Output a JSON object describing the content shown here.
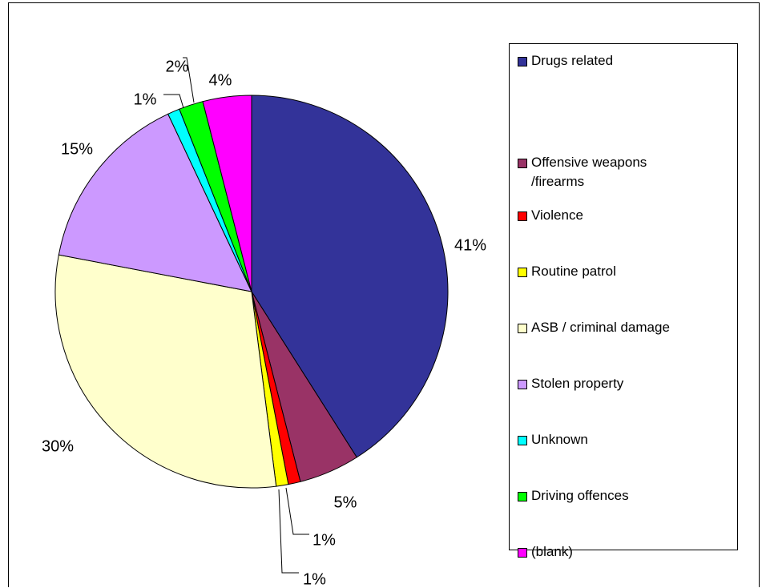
{
  "chart_data": {
    "type": "pie",
    "slices": [
      {
        "label": "Drugs related",
        "percent": 41,
        "value_label": "41%",
        "color": "#333399"
      },
      {
        "label": "Offensive weapons /firearms",
        "percent": 5,
        "value_label": "5%",
        "color": "#993366"
      },
      {
        "label": "Violence",
        "percent": 1,
        "value_label": "1%",
        "color": "#FF0000"
      },
      {
        "label": "Routine patrol",
        "percent": 1,
        "value_label": "1%",
        "color": "#FFFF00"
      },
      {
        "label": "ASB / criminal damage",
        "percent": 30,
        "value_label": "30%",
        "color": "#FFFFCC"
      },
      {
        "label": "Stolen property",
        "percent": 15,
        "value_label": "15%",
        "color": "#CC99FF"
      },
      {
        "label": "Unknown",
        "percent": 1,
        "value_label": "1%",
        "color": "#00FFFF"
      },
      {
        "label": "Driving offences",
        "percent": 2,
        "value_label": "2%",
        "color": "#00FF00"
      },
      {
        "label": "(blank)",
        "percent": 4,
        "value_label": "4%",
        "color": "#FF00FF"
      }
    ],
    "legend_position": "right"
  }
}
